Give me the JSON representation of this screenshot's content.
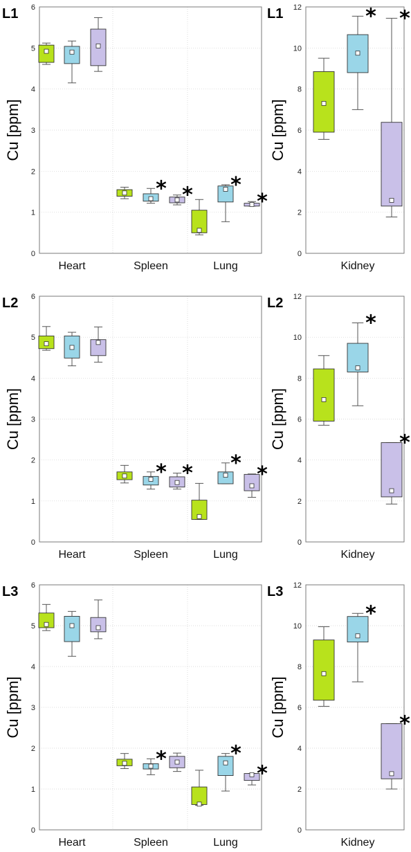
{
  "colors": {
    "group1": "#b8e21c",
    "group2": "#9ad6e8",
    "group3": "#c9c0e8",
    "frame": "#7a7a7a",
    "grid": "#cfcfcf",
    "mean_marker": "#ffffff"
  },
  "chart_data": [
    {
      "type": "box",
      "panel_label": "L1",
      "ylabel": "Cu [ppm]",
      "ylim": [
        0,
        6
      ],
      "yticks": [
        "0",
        "1",
        "2",
        "3",
        "4",
        "5",
        "6"
      ],
      "grid": true,
      "categories": [
        "Heart",
        "Spleen",
        "Lung"
      ],
      "boxes": [
        {
          "category": "Heart",
          "group": 1,
          "min": 4.6,
          "q1": 4.65,
          "mean": 4.92,
          "q3": 5.07,
          "max": 5.12,
          "star": false
        },
        {
          "category": "Heart",
          "group": 2,
          "min": 4.15,
          "q1": 4.62,
          "mean": 4.9,
          "q3": 5.04,
          "max": 5.17,
          "star": false
        },
        {
          "category": "Heart",
          "group": 3,
          "min": 4.43,
          "q1": 4.57,
          "mean": 5.05,
          "q3": 5.46,
          "max": 5.74,
          "star": false
        },
        {
          "category": "Spleen",
          "group": 1,
          "min": 1.33,
          "q1": 1.39,
          "mean": 1.47,
          "q3": 1.55,
          "max": 1.61,
          "star": false
        },
        {
          "category": "Spleen",
          "group": 2,
          "min": 1.22,
          "q1": 1.27,
          "mean": 1.33,
          "q3": 1.45,
          "max": 1.58,
          "star": true
        },
        {
          "category": "Spleen",
          "group": 3,
          "min": 1.18,
          "q1": 1.23,
          "mean": 1.3,
          "q3": 1.37,
          "max": 1.42,
          "star": true
        },
        {
          "category": "Lung",
          "group": 1,
          "min": 0.45,
          "q1": 0.5,
          "mean": 0.56,
          "q3": 1.05,
          "max": 1.31,
          "star": false
        },
        {
          "category": "Lung",
          "group": 2,
          "min": 0.77,
          "q1": 1.25,
          "mean": 1.56,
          "q3": 1.64,
          "max": 1.67,
          "star": true
        },
        {
          "category": "Lung",
          "group": 3,
          "min": 1.15,
          "q1": 1.15,
          "mean": 1.19,
          "q3": 1.22,
          "max": 1.26,
          "star": true
        }
      ]
    },
    {
      "type": "box",
      "panel_label": "L1",
      "ylabel": "Cu [ppm]",
      "ylim": [
        0,
        12
      ],
      "yticks": [
        "0",
        "2",
        "4",
        "6",
        "8",
        "10",
        "12"
      ],
      "grid": true,
      "categories": [
        "Kidney"
      ],
      "boxes": [
        {
          "category": "Kidney",
          "group": 1,
          "min": 5.55,
          "q1": 5.9,
          "mean": 7.3,
          "q3": 8.85,
          "max": 9.5,
          "star": false
        },
        {
          "category": "Kidney",
          "group": 2,
          "min": 7.0,
          "q1": 8.8,
          "mean": 9.75,
          "q3": 10.65,
          "max": 11.55,
          "star": true
        },
        {
          "category": "Kidney",
          "group": 3,
          "min": 1.77,
          "q1": 2.3,
          "mean": 2.58,
          "q3": 6.38,
          "max": 11.45,
          "star": true
        }
      ]
    },
    {
      "type": "box",
      "panel_label": "L2",
      "ylabel": "Cu [ppm]",
      "ylim": [
        0,
        6
      ],
      "yticks": [
        "0",
        "1",
        "2",
        "3",
        "4",
        "5",
        "6"
      ],
      "grid": true,
      "categories": [
        "Heart",
        "Spleen",
        "Lung"
      ],
      "boxes": [
        {
          "category": "Heart",
          "group": 1,
          "min": 4.68,
          "q1": 4.72,
          "mean": 4.84,
          "q3": 5.03,
          "max": 5.26,
          "star": false
        },
        {
          "category": "Heart",
          "group": 2,
          "min": 4.3,
          "q1": 4.49,
          "mean": 4.75,
          "q3": 5.03,
          "max": 5.12,
          "star": false
        },
        {
          "category": "Heart",
          "group": 3,
          "min": 4.39,
          "q1": 4.55,
          "mean": 4.87,
          "q3": 4.94,
          "max": 5.25,
          "star": false
        },
        {
          "category": "Spleen",
          "group": 1,
          "min": 1.44,
          "q1": 1.52,
          "mean": 1.61,
          "q3": 1.71,
          "max": 1.87,
          "star": false
        },
        {
          "category": "Spleen",
          "group": 2,
          "min": 1.29,
          "q1": 1.39,
          "mean": 1.53,
          "q3": 1.6,
          "max": 1.71,
          "star": true
        },
        {
          "category": "Spleen",
          "group": 3,
          "min": 1.29,
          "q1": 1.34,
          "mean": 1.45,
          "q3": 1.59,
          "max": 1.68,
          "star": true
        },
        {
          "category": "Lung",
          "group": 1,
          "min": 0.55,
          "q1": 0.55,
          "mean": 0.62,
          "q3": 1.02,
          "max": 1.43,
          "star": false
        },
        {
          "category": "Lung",
          "group": 2,
          "min": 1.42,
          "q1": 1.42,
          "mean": 1.63,
          "q3": 1.71,
          "max": 1.93,
          "star": true
        },
        {
          "category": "Lung",
          "group": 3,
          "min": 1.09,
          "q1": 1.25,
          "mean": 1.37,
          "q3": 1.65,
          "max": 1.66,
          "star": true
        }
      ]
    },
    {
      "type": "box",
      "panel_label": "L2",
      "ylabel": "Cu [ppm]",
      "ylim": [
        0,
        12
      ],
      "yticks": [
        "0",
        "2",
        "4",
        "6",
        "8",
        "10",
        "12"
      ],
      "grid": true,
      "categories": [
        "Kidney"
      ],
      "boxes": [
        {
          "category": "Kidney",
          "group": 1,
          "min": 5.7,
          "q1": 5.9,
          "mean": 6.95,
          "q3": 8.45,
          "max": 9.1,
          "star": false
        },
        {
          "category": "Kidney",
          "group": 2,
          "min": 6.65,
          "q1": 8.3,
          "mean": 8.5,
          "q3": 9.7,
          "max": 10.7,
          "star": true
        },
        {
          "category": "Kidney",
          "group": 3,
          "min": 1.85,
          "q1": 2.2,
          "mean": 2.5,
          "q3": 4.85,
          "max": 4.85,
          "star": true
        }
      ]
    },
    {
      "type": "box",
      "panel_label": "L3",
      "ylabel": "Cu [ppm]",
      "ylim": [
        0,
        6
      ],
      "yticks": [
        "0",
        "1",
        "2",
        "3",
        "4",
        "5",
        "6"
      ],
      "grid": true,
      "categories": [
        "Heart",
        "Spleen",
        "Lung"
      ],
      "boxes": [
        {
          "category": "Heart",
          "group": 1,
          "min": 4.88,
          "q1": 4.95,
          "mean": 5.03,
          "q3": 5.31,
          "max": 5.52,
          "star": false
        },
        {
          "category": "Heart",
          "group": 2,
          "min": 4.25,
          "q1": 4.61,
          "mean": 5.0,
          "q3": 5.23,
          "max": 5.35,
          "star": false
        },
        {
          "category": "Heart",
          "group": 3,
          "min": 4.68,
          "q1": 4.85,
          "mean": 4.95,
          "q3": 5.2,
          "max": 5.63,
          "star": false
        },
        {
          "category": "Spleen",
          "group": 1,
          "min": 1.5,
          "q1": 1.57,
          "mean": 1.63,
          "q3": 1.73,
          "max": 1.87,
          "star": false
        },
        {
          "category": "Spleen",
          "group": 2,
          "min": 1.35,
          "q1": 1.49,
          "mean": 1.56,
          "q3": 1.62,
          "max": 1.74,
          "star": true
        },
        {
          "category": "Spleen",
          "group": 3,
          "min": 1.43,
          "q1": 1.52,
          "mean": 1.66,
          "q3": 1.8,
          "max": 1.88,
          "star": false
        },
        {
          "category": "Lung",
          "group": 1,
          "min": 0.6,
          "q1": 0.62,
          "mean": 0.63,
          "q3": 1.05,
          "max": 1.46,
          "star": false
        },
        {
          "category": "Lung",
          "group": 2,
          "min": 0.95,
          "q1": 1.33,
          "mean": 1.64,
          "q3": 1.8,
          "max": 1.87,
          "star": true
        },
        {
          "category": "Lung",
          "group": 3,
          "min": 1.1,
          "q1": 1.21,
          "mean": 1.35,
          "q3": 1.38,
          "max": 1.38,
          "star": true
        }
      ]
    },
    {
      "type": "box",
      "panel_label": "L3",
      "ylabel": "Cu [ppm]",
      "ylim": [
        0,
        12
      ],
      "yticks": [
        "0",
        "2",
        "4",
        "6",
        "8",
        "10",
        "12"
      ],
      "grid": true,
      "categories": [
        "Kidney"
      ],
      "boxes": [
        {
          "category": "Kidney",
          "group": 1,
          "min": 6.05,
          "q1": 6.35,
          "mean": 7.65,
          "q3": 9.3,
          "max": 9.95,
          "star": false
        },
        {
          "category": "Kidney",
          "group": 2,
          "min": 7.25,
          "q1": 9.2,
          "mean": 9.5,
          "q3": 10.45,
          "max": 10.6,
          "star": true
        },
        {
          "category": "Kidney",
          "group": 3,
          "min": 2.0,
          "q1": 2.5,
          "mean": 2.75,
          "q3": 5.2,
          "max": 5.2,
          "star": true
        }
      ]
    }
  ]
}
